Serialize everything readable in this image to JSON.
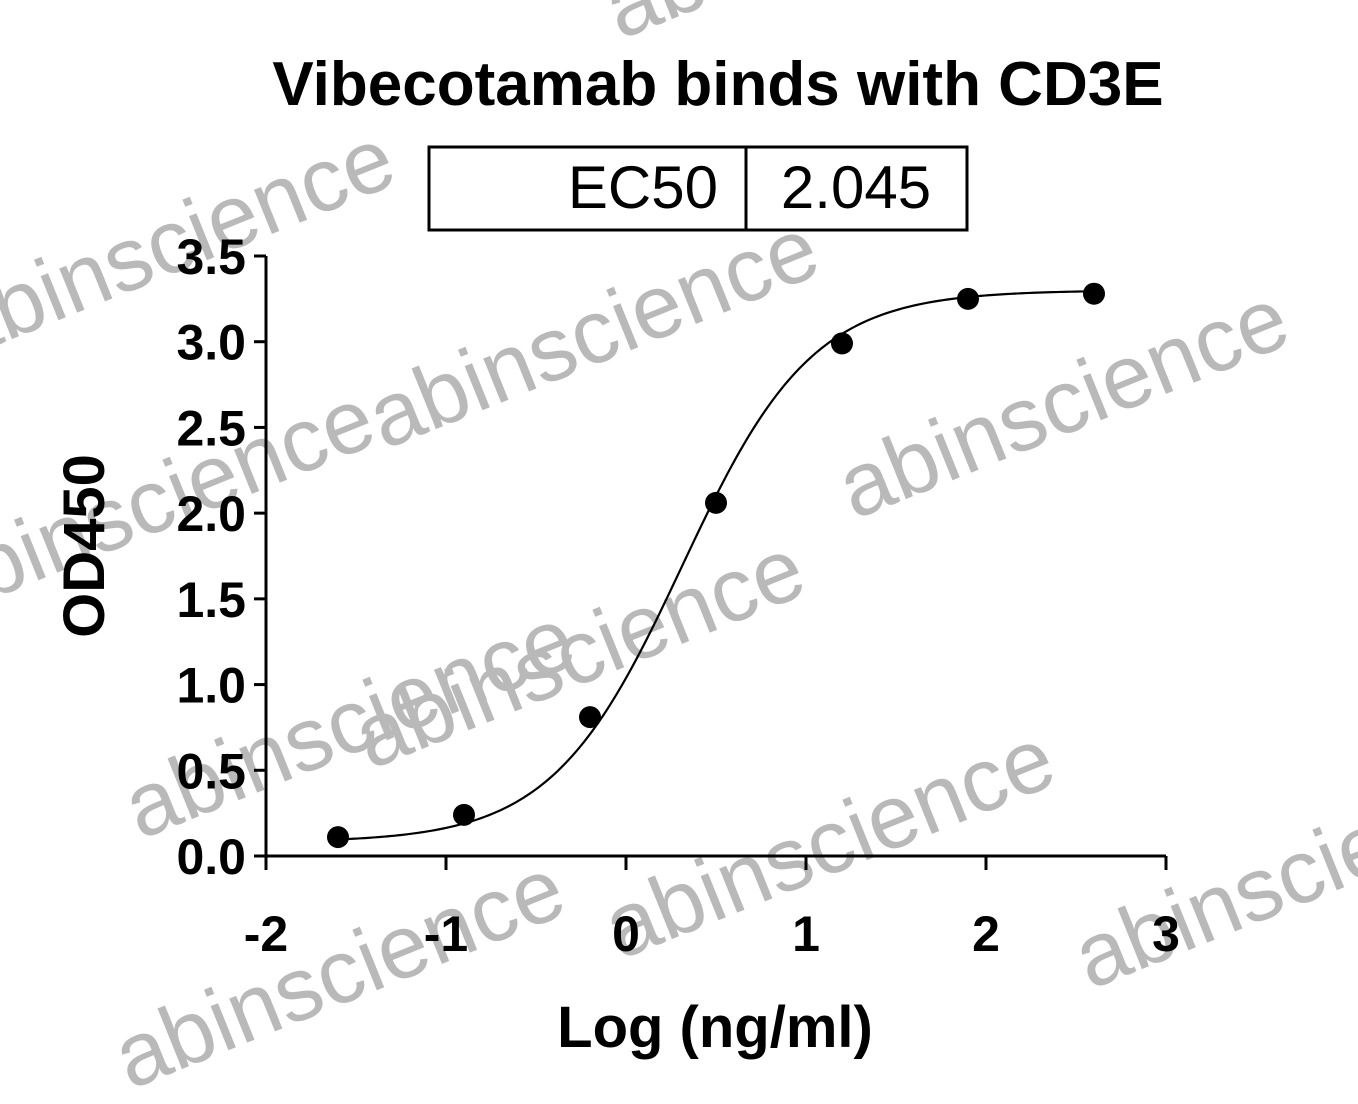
{
  "chart_data": {
    "type": "scatter",
    "title": "Vibecotamab binds with CD3E",
    "xlabel": "Log (ng/ml)",
    "ylabel": "OD450",
    "xlim": [
      -2,
      3
    ],
    "ylim": [
      0,
      3.5
    ],
    "xticks": [
      "-2",
      "-1",
      "0",
      "1",
      "2",
      "3"
    ],
    "yticks": [
      "0.0",
      "0.5",
      "1.0",
      "1.5",
      "2.0",
      "2.5",
      "3.0",
      "3.5"
    ],
    "grid": false,
    "legend": "none",
    "fit": "sigmoidal four-parameter logistic curve through points",
    "fit_params": {
      "bottom": 0.08,
      "top": 3.3,
      "logEC50": 0.311,
      "hill": 1.2
    },
    "series": [
      {
        "x": [
          -1.6,
          -0.9,
          -0.2,
          0.5,
          1.2,
          1.9,
          2.6
        ],
        "y": [
          0.11,
          0.24,
          0.81,
          2.06,
          2.99,
          3.25,
          3.28
        ]
      }
    ],
    "table": {
      "label": "EC50",
      "value": "2.045"
    }
  },
  "watermark": "abinscience",
  "colors": {
    "marks": "#000000",
    "watermark": "#b9b9b9"
  }
}
